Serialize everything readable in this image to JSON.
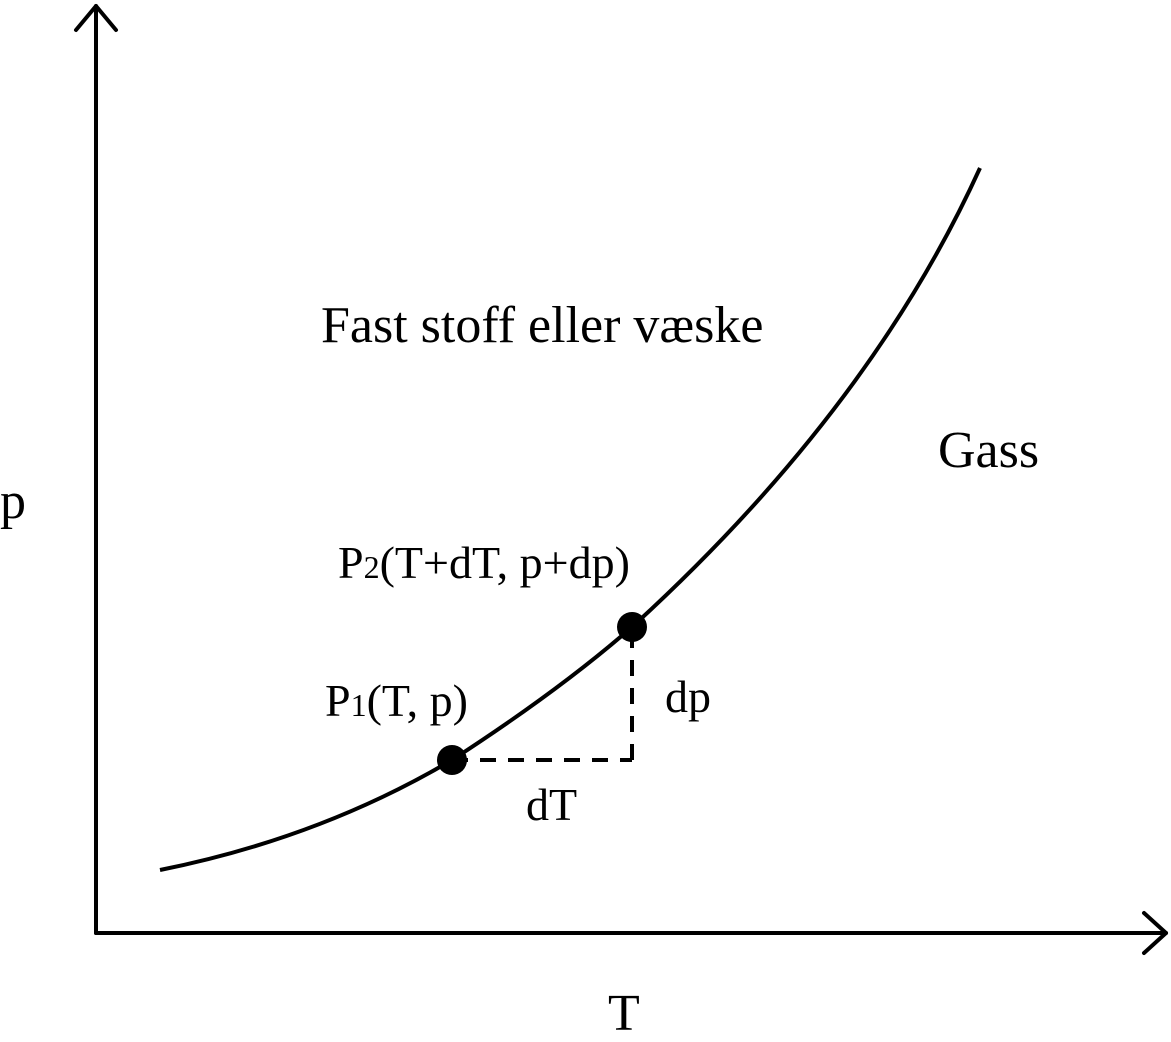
{
  "axes": {
    "y_label": "p",
    "x_label": "T"
  },
  "regions": {
    "upper_left": "Fast stoff eller væske",
    "lower_right": "Gass"
  },
  "points": {
    "p1": {
      "letter": "P",
      "subscript": "1",
      "coords": "(T, p)"
    },
    "p2": {
      "letter": "P",
      "subscript": "2",
      "coords": "(T+dT, p+dp)"
    }
  },
  "increments": {
    "dT": "dT",
    "dp": "dp"
  },
  "colors": {
    "ink": "#000000",
    "background": "#ffffff"
  }
}
